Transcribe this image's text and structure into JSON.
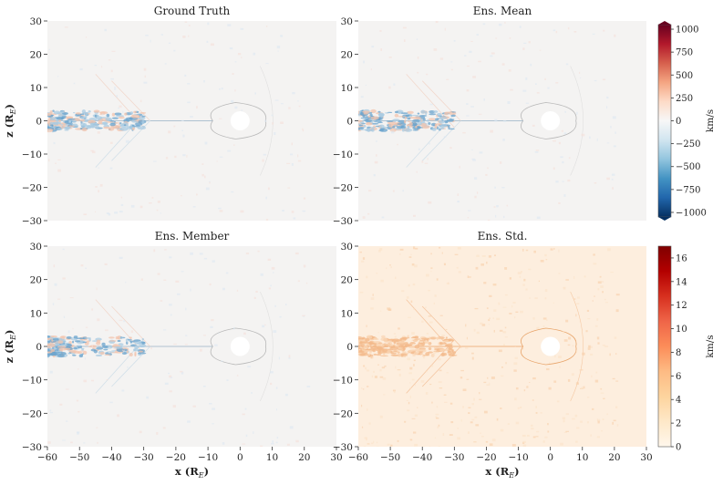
{
  "chart_data": {
    "type": "heatmap",
    "panels": [
      {
        "title": "Ground Truth",
        "field": "velocity",
        "show_xlabel": false,
        "show_ylabel": true
      },
      {
        "title": "Ens. Mean",
        "field": "velocity",
        "show_xlabel": false,
        "show_ylabel": false
      },
      {
        "title": "Ens. Member",
        "field": "velocity",
        "show_xlabel": true,
        "show_ylabel": true
      },
      {
        "title": "Ens. Std.",
        "field": "std",
        "show_xlabel": true,
        "show_ylabel": false
      }
    ],
    "xlabel": "x (R",
    "xlabel_sub": "E",
    "ylabel": "z (R",
    "ylabel_sub": "E",
    "label_close": ")",
    "xlim": [
      -60,
      30
    ],
    "ylim": [
      -30,
      30
    ],
    "xticks": [
      -60,
      -50,
      -40,
      -30,
      -20,
      -10,
      0,
      10,
      20,
      30
    ],
    "yticks": [
      -30,
      -20,
      -10,
      0,
      10,
      20,
      30
    ],
    "colorbars": [
      {
        "cmap": "RdBu_r",
        "label": "km/s",
        "range": [
          -1050,
          1050
        ],
        "ticks": [
          -1000,
          -750,
          -500,
          -250,
          0,
          250,
          500,
          750,
          1000
        ],
        "tick_labels": [
          "−1000",
          "−750",
          "−500",
          "−250",
          "0",
          "250",
          "500",
          "750",
          "1000"
        ],
        "colors": [
          "#053061",
          "#2166ac",
          "#4393c3",
          "#92c5de",
          "#d1e5f0",
          "#f7f7f7",
          "#fddbc7",
          "#f4a582",
          "#d6604d",
          "#b2182b",
          "#67001f"
        ]
      },
      {
        "cmap": "OrRd",
        "label": "km/s",
        "range": [
          0,
          17
        ],
        "ticks": [
          0,
          2,
          4,
          6,
          8,
          10,
          12,
          14,
          16
        ],
        "tick_labels": [
          "0",
          "2",
          "4",
          "6",
          "8",
          "10",
          "12",
          "14",
          "16"
        ],
        "colors": [
          "#fff7ec",
          "#fee8c8",
          "#fdd49e",
          "#fdbb84",
          "#fc8d59",
          "#ef6548",
          "#d7301f",
          "#b30000",
          "#7f0000"
        ]
      }
    ],
    "background_colors": {
      "velocity": "#f4f3f2",
      "std": "#fdeede"
    },
    "planet": {
      "x": 0,
      "z": 0,
      "radius": 2.5
    }
  }
}
